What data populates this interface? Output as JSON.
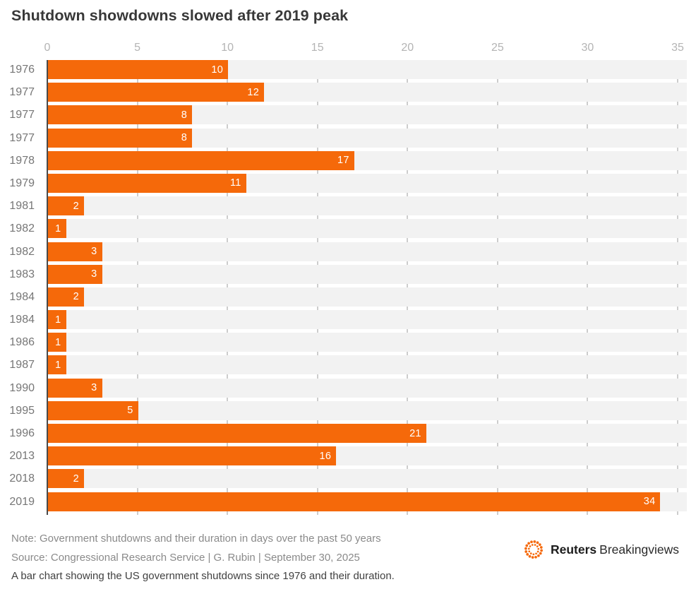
{
  "title": "Shutdown showdowns slowed after 2019 peak",
  "chart_data": {
    "type": "bar",
    "orientation": "horizontal",
    "title": "Shutdown showdowns slowed after 2019 peak",
    "categories": [
      "1976",
      "1977",
      "1977",
      "1977",
      "1978",
      "1979",
      "1981",
      "1982",
      "1982",
      "1983",
      "1984",
      "1984",
      "1986",
      "1987",
      "1990",
      "1995",
      "1996",
      "2013",
      "2018",
      "2019"
    ],
    "values": [
      10,
      12,
      8,
      8,
      17,
      11,
      2,
      1,
      3,
      3,
      2,
      1,
      1,
      1,
      3,
      5,
      21,
      16,
      2,
      34
    ],
    "xlabel": "",
    "ylabel": "",
    "xlim": [
      0,
      35
    ],
    "xticks": [
      0,
      5,
      10,
      15,
      20,
      25,
      30,
      35
    ],
    "grid": true,
    "value_labels": "inside-end",
    "bar_color": "#F5690A",
    "track_color": "#F2F2F2",
    "gridline_color": "#CDCDCD",
    "axis_line_color": "#4A4A4A"
  },
  "footer": {
    "note": "Note: Government shutdowns and their duration in days over the past 50 years",
    "source": "Source: Congressional Research Service | G. Rubin | September 30, 2025",
    "alt_text": "A bar chart showing the US government shutdowns since 1976 and their duration."
  },
  "branding": {
    "brand_bold": "Reuters",
    "brand_regular": "Breakingviews",
    "logo_color": "#F5690A"
  }
}
